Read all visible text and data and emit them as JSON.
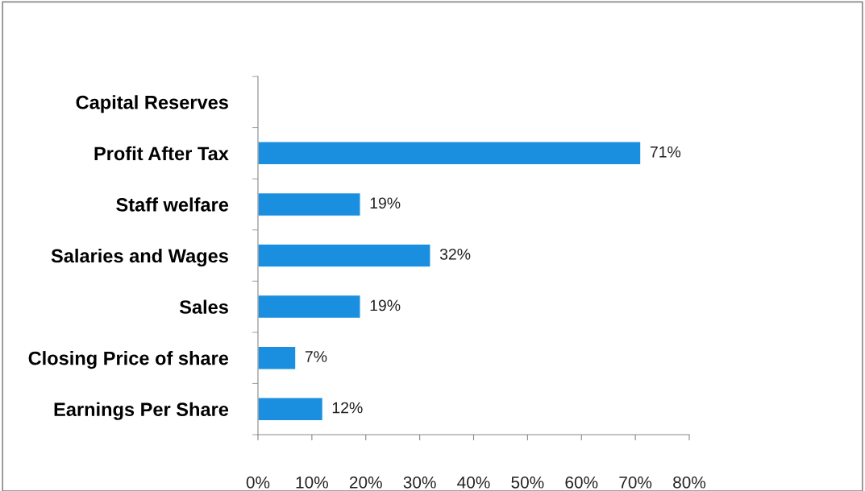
{
  "chart_data": {
    "type": "bar",
    "orientation": "horizontal",
    "categories": [
      "Capital Reserves",
      "Profit After Tax",
      "Staff welfare",
      "Salaries and Wages",
      "Sales",
      "Closing Price of share",
      "Earnings Per Share"
    ],
    "values": [
      null,
      71,
      19,
      32,
      19,
      7,
      12
    ],
    "value_labels": [
      null,
      "71%",
      "19%",
      "32%",
      "19%",
      "7%",
      "12%"
    ],
    "color": "#1a8fe0",
    "xlim": [
      0,
      80
    ],
    "xticks": [
      {
        "value": 0,
        "label": "0%"
      },
      {
        "value": 10,
        "label": "10%"
      },
      {
        "value": 20,
        "label": "20%"
      },
      {
        "value": 30,
        "label": "30%"
      },
      {
        "value": 40,
        "label": "40%"
      },
      {
        "value": 50,
        "label": "50%"
      },
      {
        "value": 60,
        "label": "60%"
      },
      {
        "value": 70,
        "label": "70%"
      },
      {
        "value": 80,
        "label": "80%"
      }
    ],
    "grid": false
  }
}
